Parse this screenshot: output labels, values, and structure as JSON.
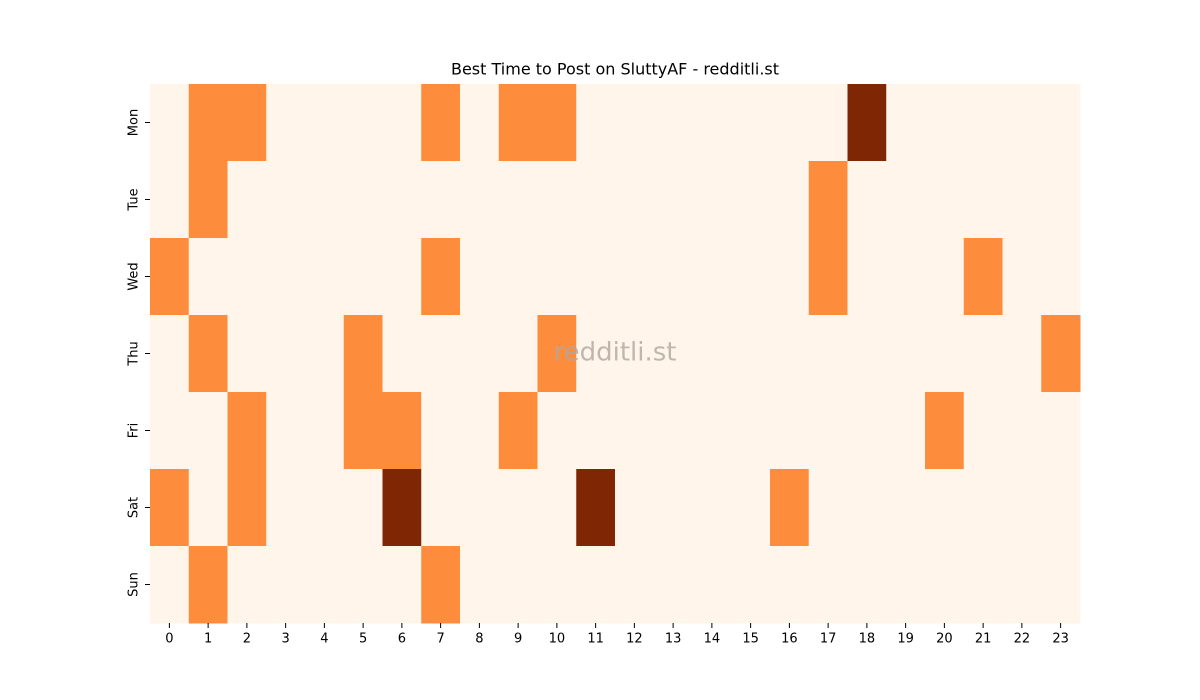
{
  "chart_data": {
    "type": "heatmap",
    "title": "Best Time to Post on SluttyAF - redditli.st",
    "watermark": "redditli.st",
    "x_categories": [
      "0",
      "1",
      "2",
      "3",
      "4",
      "5",
      "6",
      "7",
      "8",
      "9",
      "10",
      "11",
      "12",
      "13",
      "14",
      "15",
      "16",
      "17",
      "18",
      "19",
      "20",
      "21",
      "22",
      "23"
    ],
    "y_categories": [
      "Mon",
      "Tue",
      "Wed",
      "Thu",
      "Fri",
      "Sat",
      "Sun"
    ],
    "colors": [
      "#fff5eb",
      "#fd8d3c",
      "#7f2704"
    ],
    "values": [
      [
        0,
        1,
        1,
        0,
        0,
        0,
        0,
        1,
        0,
        1,
        1,
        0,
        0,
        0,
        0,
        0,
        0,
        0,
        2,
        0,
        0,
        0,
        0,
        0
      ],
      [
        0,
        1,
        0,
        0,
        0,
        0,
        0,
        0,
        0,
        0,
        0,
        0,
        0,
        0,
        0,
        0,
        0,
        1,
        0,
        0,
        0,
        0,
        0,
        0
      ],
      [
        1,
        0,
        0,
        0,
        0,
        0,
        0,
        1,
        0,
        0,
        0,
        0,
        0,
        0,
        0,
        0,
        0,
        1,
        0,
        0,
        0,
        1,
        0,
        0
      ],
      [
        0,
        1,
        0,
        0,
        0,
        1,
        0,
        0,
        0,
        0,
        1,
        0,
        0,
        0,
        0,
        0,
        0,
        0,
        0,
        0,
        0,
        0,
        0,
        1
      ],
      [
        0,
        0,
        1,
        0,
        0,
        1,
        1,
        0,
        0,
        1,
        0,
        0,
        0,
        0,
        0,
        0,
        0,
        0,
        0,
        0,
        1,
        0,
        0,
        0
      ],
      [
        1,
        0,
        1,
        0,
        0,
        0,
        2,
        0,
        0,
        0,
        0,
        2,
        0,
        0,
        0,
        0,
        1,
        0,
        0,
        0,
        0,
        0,
        0,
        0
      ],
      [
        0,
        1,
        0,
        0,
        0,
        0,
        0,
        1,
        0,
        0,
        0,
        0,
        0,
        0,
        0,
        0,
        0,
        0,
        0,
        0,
        0,
        0,
        0,
        0
      ]
    ]
  }
}
